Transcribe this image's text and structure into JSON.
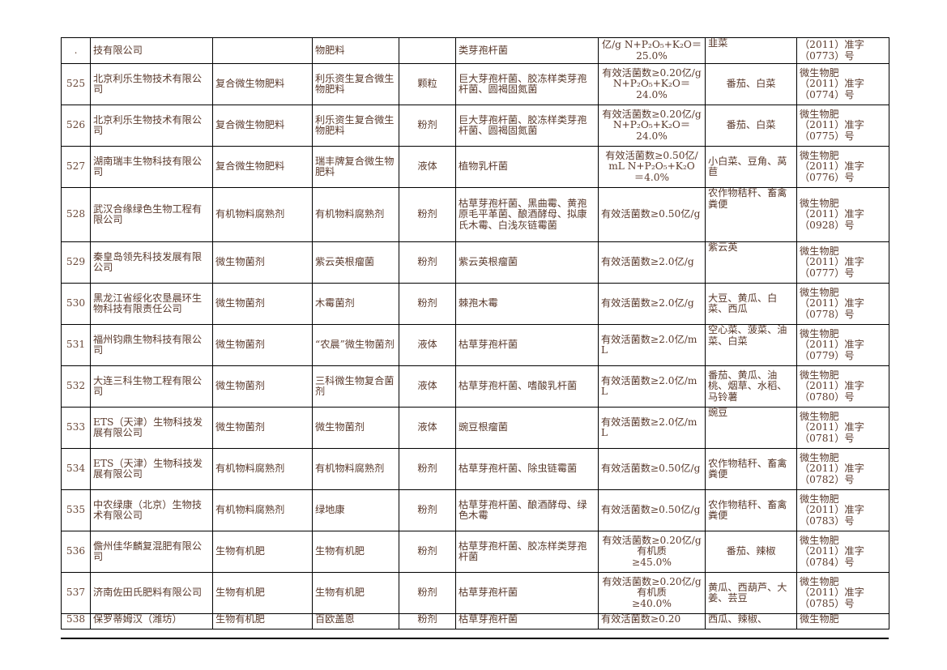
{
  "rows": [
    {
      "no": ".",
      "company": "技有限公司",
      "category": "",
      "product": "物肥料",
      "form": "",
      "strains": "类芽孢杆菌",
      "content": "亿/g N+P₂O₅+K₂O＝\n25.0%",
      "crops": "韭菜",
      "license": "（2011）准字\n（0773）号"
    },
    {
      "no": "525",
      "company": "北京利乐生物技术有限公司",
      "category": "复合微生物肥料",
      "product": "利乐资生复合微生物肥料",
      "form": "颗粒",
      "strains": "巨大芽孢杆菌、胶冻样类芽孢杆菌、圆褐固氮菌",
      "content": "有效活菌数≥0.20亿/g N+P₂O₅+K₂O＝\n24.0%",
      "crops": "番茄、白菜",
      "license": "微生物肥\n（2011）准字\n（0774）号"
    },
    {
      "no": "526",
      "company": "北京利乐生物技术有限公司",
      "category": "复合微生物肥料",
      "product": "利乐资生复合微生物肥料",
      "form": "粉剂",
      "strains": "巨大芽孢杆菌、胶冻样类芽孢杆菌、圆褐固氮菌",
      "content": "有效活菌数≥0.20亿/g N+P₂O₅+K₂O＝\n24.0%",
      "crops": "番茄、白菜",
      "license": "微生物肥\n（2011）准字\n（0775）号"
    },
    {
      "no": "527",
      "company": "湖南瑞丰生物科技有限公司",
      "category": "复合微生物肥料",
      "product": "瑞丰牌复合微生物肥料",
      "form": "液体",
      "strains": "植物乳杆菌",
      "content": "有效活菌数≥0.50亿/mL N+P₂O₅+K₂O\n＝4.0%",
      "crops": "小白菜、豆角、莴苣",
      "license": "微生物肥\n（2011）准字\n（0776）号"
    },
    {
      "no": "528",
      "company": "武汉合缘绿色生物工程有限公司",
      "category": "有机物料腐熟剂",
      "product": "有机物料腐熟剂",
      "form": "粉剂",
      "strains": "枯草芽孢杆菌、黑曲霉、黄孢原毛平革菌、酿酒酵母、拟康氏木霉、白浅灰链霉菌",
      "content": "有效活菌数≥0.50亿/g",
      "crops": "农作物秸秆、畜禽粪便",
      "license": "微生物肥\n（2011）准字\n（0928）号"
    },
    {
      "no": "529",
      "company": "秦皇岛领先科技发展有限公司",
      "category": "微生物菌剂",
      "product": "紫云英根瘤菌",
      "form": "粉剂",
      "strains": "紫云英根瘤菌",
      "content": "有效活菌数≥2.0亿/g",
      "crops": "紫云英",
      "license": "微生物肥\n（2011）准字\n（0777）号"
    },
    {
      "no": "530",
      "company": "黑龙江省绥化农垦晨环生物科技有限责任公司",
      "category": "微生物菌剂",
      "product": "木霉菌剂",
      "form": "粉剂",
      "strains": "棘孢木霉",
      "content": "有效活菌数≥2.0亿/g",
      "crops": "大豆、黄瓜、白菜、西瓜",
      "license": "微生物肥\n（2011）准字\n（0778）号"
    },
    {
      "no": "531",
      "company": "福州钧鼎生物科技有限公司",
      "category": "微生物菌剂",
      "product": "“农晨”微生物菌剂",
      "form": "液体",
      "strains": "枯草芽孢杆菌",
      "content": "有效活菌数≥2.0亿/mL",
      "crops": "空心菜、菠菜、油菜、白菜",
      "license": "微生物肥\n（2011）准字\n（0779）号"
    },
    {
      "no": "532",
      "company": "大连三科生物工程有限公司",
      "category": "微生物菌剂",
      "product": "三科微生物复合菌剂",
      "form": "液体",
      "strains": "枯草芽孢杆菌、嗜酸乳杆菌",
      "content": "有效活菌数≥2.0亿/mL",
      "crops": "番茄、黄瓜、油桃、烟草、水稻、马铃薯",
      "license": "微生物肥\n（2011）准字\n（0780）号"
    },
    {
      "no": "533",
      "company": "ETS（天津）生物科技发展有限公司",
      "category": "微生物菌剂",
      "product": "微生物菌剂",
      "form": "液体",
      "strains": "豌豆根瘤菌",
      "content": "有效活菌数≥2.0亿/mL",
      "crops": "豌豆",
      "license": "微生物肥\n（2011）准字\n（0781）号"
    },
    {
      "no": "534",
      "company": "ETS（天津）生物科技发展有限公司",
      "category": "有机物料腐熟剂",
      "product": "有机物料腐熟剂",
      "form": "粉剂",
      "strains": "枯草芽孢杆菌、除虫链霉菌",
      "content": "有效活菌数≥0.50亿/g",
      "crops": "农作物秸秆、畜禽粪便",
      "license": "微生物肥\n（2011）准字\n（0782）号"
    },
    {
      "no": "535",
      "company": "中农绿康（北京）生物技术有限公司",
      "category": "有机物料腐熟剂",
      "product": "绿地康",
      "form": "粉剂",
      "strains": "枯草芽孢杆菌、酿酒酵母、绿色木霉",
      "content": "有效活菌数≥0.50亿/g",
      "crops": "农作物秸秆、畜禽粪便",
      "license": "微生物肥\n（2011）准字\n（0783）号"
    },
    {
      "no": "536",
      "company": "儋州佳华麟复混肥有限公司",
      "category": "生物有机肥",
      "product": "生物有机肥",
      "form": "粉剂",
      "strains": "枯草芽孢杆菌、胶冻样类芽孢杆菌",
      "content": "有效活菌数≥0.20亿/g有机质\n≥45.0%",
      "crops": "番茄、辣椒",
      "license": "微生物肥\n（2011）准字\n（0784）号"
    },
    {
      "no": "537",
      "company": "济南佐田氏肥料有限公司",
      "category": "生物有机肥",
      "product": "生物有机肥",
      "form": "粉剂",
      "strains": "枯草芽孢杆菌",
      "content": "有效活菌数≥0.20亿/g有机质\n≥40.0%",
      "crops": "黄瓜、西葫芦、大姜、芸豆",
      "license": "微生物肥\n（2011）准字\n（0785）号"
    },
    {
      "no": "538",
      "company": "保罗蒂姆汉（潍坊）",
      "category": "生物有机肥",
      "product": "百欧盖恩",
      "form": "粉剂",
      "strains": "枯草芽孢杆菌",
      "content": "有效活菌数≥0.20",
      "crops": "西瓜、辣椒、",
      "license": "微生物肥"
    }
  ]
}
